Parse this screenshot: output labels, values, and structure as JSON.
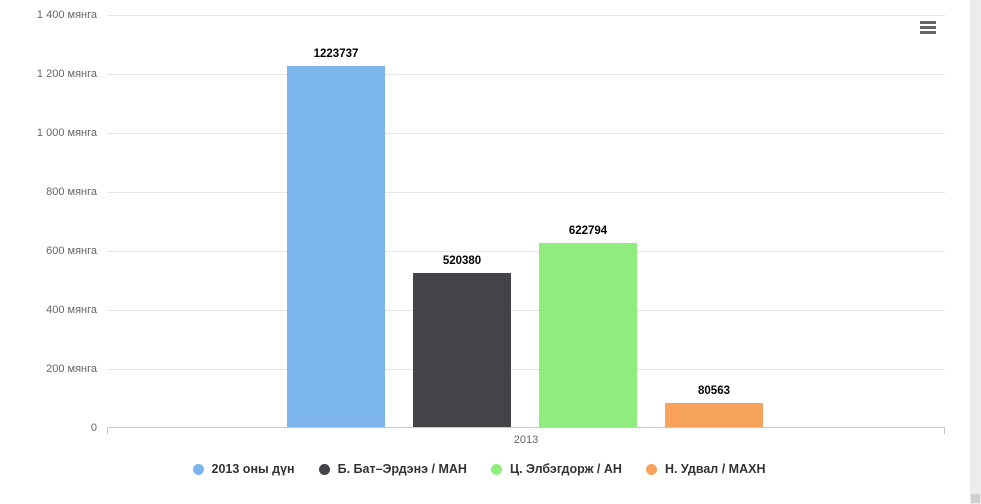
{
  "chart_data": {
    "type": "bar",
    "title": "",
    "categories": [
      "2013"
    ],
    "series": [
      {
        "name": "2013 оны дүн",
        "color": "#7cb5ec",
        "values": [
          1223737
        ],
        "data_label": "1223737"
      },
      {
        "name": "Б. Бат–Эрдэнэ / МАН",
        "color": "#434348",
        "values": [
          520380
        ],
        "data_label": "520380"
      },
      {
        "name": "Ц. Элбэгдорж / АН",
        "color": "#90ed7d",
        "values": [
          622794
        ],
        "data_label": "622794"
      },
      {
        "name": "Н. Удвал / МАХН",
        "color": "#f7a35c",
        "values": [
          80563
        ],
        "data_label": "80563"
      }
    ],
    "xlabel": "",
    "ylabel": "",
    "ylim": [
      0,
      1400000
    ],
    "yticks": [
      {
        "value": 1400000,
        "label": "1 400 мянга"
      },
      {
        "value": 1200000,
        "label": "1 200 мянга"
      },
      {
        "value": 1000000,
        "label": "1 000 мянга"
      },
      {
        "value": 800000,
        "label": "800 мянга"
      },
      {
        "value": 600000,
        "label": "600 мянга"
      },
      {
        "value": 400000,
        "label": "400 мянга"
      },
      {
        "value": 200000,
        "label": "200 мянга"
      },
      {
        "value": 0,
        "label": "0"
      }
    ],
    "grid": true,
    "legend_position": "bottom"
  },
  "toolbar": {
    "export_menu_icon": "hamburger-menu-icon"
  },
  "colors": {
    "gridline": "#e6e6e6",
    "axis_line": "#c8c8c8",
    "tick_label_text": "#666666",
    "legend_text": "#333333",
    "data_label_text": "#000000"
  }
}
